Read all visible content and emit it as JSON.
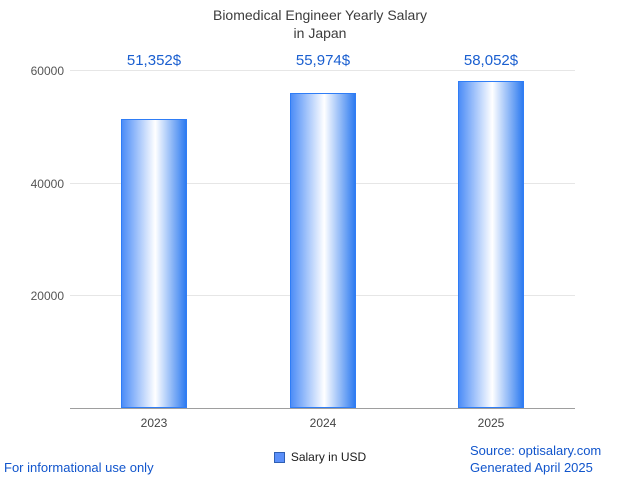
{
  "chart_data": {
    "type": "bar",
    "title_line1": "Biomedical Engineer Yearly Salary",
    "title_line2": "in Japan",
    "categories": [
      "2023",
      "2024",
      "2025"
    ],
    "values": [
      51352,
      55974,
      58052
    ],
    "value_labels": [
      "51,352$",
      "55,974$",
      "58,052$"
    ],
    "ylim": [
      0,
      60000
    ],
    "yticks": [
      20000,
      40000,
      60000
    ],
    "grid": true,
    "legend_entries": [
      "Salary in USD"
    ],
    "legend_position": "bottom-center",
    "xlabel": "",
    "ylabel": ""
  },
  "legend": {
    "salary_label": "Salary in USD"
  },
  "footer": {
    "disclaimer": "For informational use only",
    "source": "Source: optisalary.com",
    "generated": "Generated April 2025"
  },
  "colors": {
    "bar_edge": "#2f7df6",
    "bar_gradient_start": "#4d8df7",
    "bar_gradient_end": "#2e7bf0",
    "value_label": "#1a5fd0",
    "link_text": "#1155cc",
    "title_text": "#3c3c3c",
    "axis_text": "#555555",
    "gridline": "#e6e6e6"
  }
}
